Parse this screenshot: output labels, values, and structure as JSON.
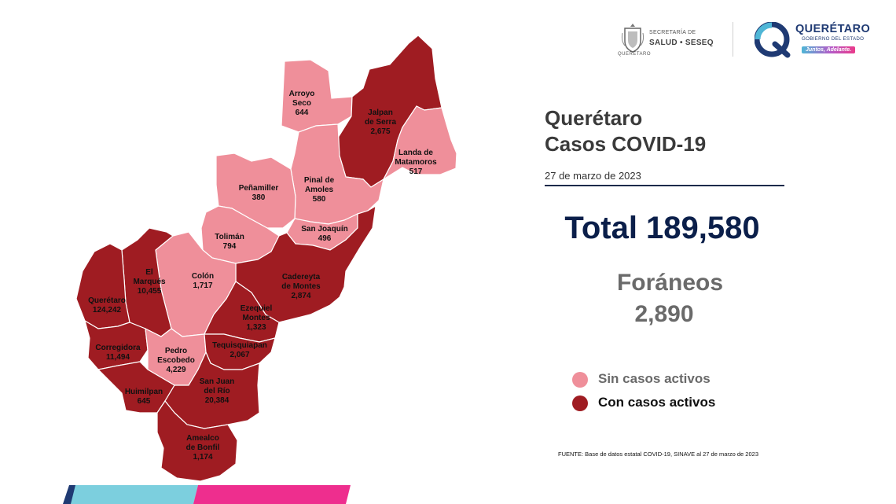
{
  "header": {
    "title_line1": "Querétaro",
    "title_line2": "Casos COVID-19",
    "date": "27 de marzo de 2023"
  },
  "totals": {
    "total": "Total 189,580",
    "foraneos_label": "Foráneos",
    "foraneos_value": "2,890"
  },
  "legend": {
    "inactive": {
      "label": "Sin casos activos",
      "color": "#ef8f9a"
    },
    "active": {
      "label": "Con casos activos",
      "color": "#9f1c22"
    }
  },
  "source": "FUENTE: Base de datos estatal COVID-19, SINAVE al 27 de marzo de 2023",
  "logos": {
    "salud": {
      "name": "SECRETARÍA DE",
      "sub": "SALUD • SESEQ",
      "seal_caption": "QUERÉTARO"
    },
    "gobierno": {
      "name": "QUERÉTARO",
      "sub": "GOBIERNO DEL ESTADO",
      "slogan": "Juntos, Adelante."
    }
  },
  "colors": {
    "inactive": "#ef8f9a",
    "active": "#9f1c22",
    "navy": "#0b1f4a",
    "grey_text": "#6a6a6a",
    "stripe_blue": "#7ccfde",
    "stripe_pink": "#ee2e8e"
  },
  "municipalities": [
    {
      "id": "arroyo-seco",
      "lines": [
        "Arroyo",
        "Seco",
        "644"
      ],
      "status": "inactive"
    },
    {
      "id": "jalpan-de-serra",
      "lines": [
        "Jalpan",
        "de Serra",
        "2,675"
      ],
      "status": "active"
    },
    {
      "id": "landa-de-matamoros",
      "lines": [
        "Landa de",
        "Matamoros",
        "517"
      ],
      "status": "inactive"
    },
    {
      "id": "penamiller",
      "lines": [
        "Peñamiller",
        "380"
      ],
      "status": "inactive"
    },
    {
      "id": "pinal-de-amoles",
      "lines": [
        "Pinal de",
        "Amoles",
        "580"
      ],
      "status": "inactive"
    },
    {
      "id": "san-joaquin",
      "lines": [
        "San Joaquín",
        "496"
      ],
      "status": "inactive"
    },
    {
      "id": "toliman",
      "lines": [
        "Tolimán",
        "794"
      ],
      "status": "inactive"
    },
    {
      "id": "colon",
      "lines": [
        "Colón",
        "1,717"
      ],
      "status": "inactive"
    },
    {
      "id": "cadereyta-de-montes",
      "lines": [
        "Cadereyta",
        "de Montes",
        "2,874"
      ],
      "status": "active"
    },
    {
      "id": "el-marques",
      "lines": [
        "El",
        "Marqués",
        "10,455"
      ],
      "status": "active"
    },
    {
      "id": "queretaro",
      "lines": [
        "Querétaro",
        "124,242"
      ],
      "status": "active"
    },
    {
      "id": "ezequiel-montes",
      "lines": [
        "Ezequiel",
        "Montes",
        "1,323"
      ],
      "status": "active"
    },
    {
      "id": "corregidora",
      "lines": [
        "Corregidora",
        "11,494"
      ],
      "status": "active"
    },
    {
      "id": "pedro-escobedo",
      "lines": [
        "Pedro",
        "Escobedo",
        "4,229"
      ],
      "status": "inactive"
    },
    {
      "id": "tequisquiapan",
      "lines": [
        "Tequisquiapan",
        "2,067"
      ],
      "status": "active"
    },
    {
      "id": "huimilpan",
      "lines": [
        "Huimilpan",
        "645"
      ],
      "status": "active"
    },
    {
      "id": "san-juan-del-rio",
      "lines": [
        "San Juan",
        "del Río",
        "20,384"
      ],
      "status": "active"
    },
    {
      "id": "amealco-de-bonfil",
      "lines": [
        "Amealco",
        "de Bonfil",
        "1,174"
      ],
      "status": "active"
    }
  ]
}
